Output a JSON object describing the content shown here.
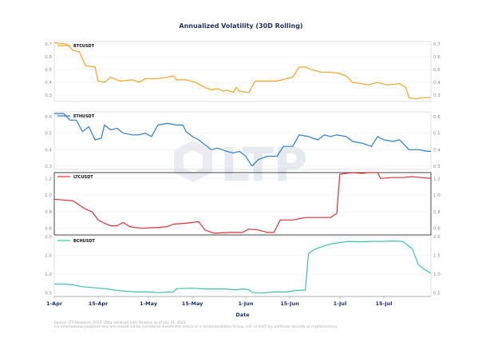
{
  "title": "Annualized Volatility (30D Rolling)",
  "xlabel": "Date",
  "watermark_text": "LTP",
  "footer": {
    "line1": "Source: LTP Research, 2023. Data retrieved from Binance as of July 31, 2023.",
    "line2": "For informational purposes only and should not be considered investment advice or a recommendation to buy, sell, or hold any particular security or cryptocurrency."
  },
  "chart_data": {
    "type": "line",
    "title": "Annualized Volatility (30D Rolling)",
    "xlabel": "Date",
    "x_range": [
      0,
      120
    ],
    "x_ticks": [
      {
        "label": "1-Apr",
        "day": 0
      },
      {
        "label": "15-Apr",
        "day": 14
      },
      {
        "label": "1-May",
        "day": 30
      },
      {
        "label": "15-May",
        "day": 44
      },
      {
        "label": "1-Jun",
        "day": 61
      },
      {
        "label": "15-Jun",
        "day": 75
      },
      {
        "label": "1-Jul",
        "day": 91
      },
      {
        "label": "15-Jul",
        "day": 105
      }
    ],
    "panels": [
      {
        "name": "BTCUSDT",
        "color": "#f2a322",
        "ylim": [
          0.25,
          0.72
        ],
        "yticks": [
          "0.3",
          "0.4",
          "0.5",
          "0.6",
          "0.7"
        ],
        "points": [
          [
            0,
            0.71
          ],
          [
            4,
            0.7
          ],
          [
            6,
            0.65
          ],
          [
            8,
            0.64
          ],
          [
            10,
            0.53
          ],
          [
            13,
            0.52
          ],
          [
            14,
            0.41
          ],
          [
            16,
            0.4
          ],
          [
            18,
            0.44
          ],
          [
            21,
            0.41
          ],
          [
            25,
            0.42
          ],
          [
            27,
            0.4
          ],
          [
            29,
            0.43
          ],
          [
            33,
            0.43
          ],
          [
            36,
            0.44
          ],
          [
            38,
            0.45
          ],
          [
            39,
            0.42
          ],
          [
            42,
            0.42
          ],
          [
            45,
            0.4
          ],
          [
            48,
            0.36
          ],
          [
            50,
            0.34
          ],
          [
            52,
            0.35
          ],
          [
            54,
            0.33
          ],
          [
            55,
            0.34
          ],
          [
            57,
            0.32
          ],
          [
            58,
            0.36
          ],
          [
            59,
            0.33
          ],
          [
            62,
            0.32
          ],
          [
            64,
            0.41
          ],
          [
            68,
            0.41
          ],
          [
            71,
            0.41
          ],
          [
            74,
            0.43
          ],
          [
            76,
            0.44
          ],
          [
            78,
            0.52
          ],
          [
            80,
            0.52
          ],
          [
            82,
            0.5
          ],
          [
            85,
            0.48
          ],
          [
            88,
            0.48
          ],
          [
            91,
            0.47
          ],
          [
            93,
            0.45
          ],
          [
            95,
            0.4
          ],
          [
            98,
            0.39
          ],
          [
            100,
            0.38
          ],
          [
            103,
            0.4
          ],
          [
            106,
            0.38
          ],
          [
            110,
            0.39
          ],
          [
            112,
            0.36
          ],
          [
            113,
            0.28
          ],
          [
            115,
            0.27
          ],
          [
            117,
            0.28
          ],
          [
            120,
            0.28
          ]
        ]
      },
      {
        "name": "ETHUSDT",
        "color": "#2c7cc6",
        "ylim": [
          0.28,
          0.63
        ],
        "yticks": [
          "0.3",
          "0.4",
          "0.5",
          "0.6"
        ],
        "points": [
          [
            0,
            0.62
          ],
          [
            3,
            0.62
          ],
          [
            5,
            0.58
          ],
          [
            7,
            0.58
          ],
          [
            9,
            0.51
          ],
          [
            11,
            0.54
          ],
          [
            13,
            0.46
          ],
          [
            15,
            0.47
          ],
          [
            16,
            0.55
          ],
          [
            18,
            0.52
          ],
          [
            20,
            0.53
          ],
          [
            22,
            0.5
          ],
          [
            25,
            0.49
          ],
          [
            27,
            0.49
          ],
          [
            29,
            0.5
          ],
          [
            31,
            0.48
          ],
          [
            33,
            0.55
          ],
          [
            36,
            0.56
          ],
          [
            39,
            0.55
          ],
          [
            41,
            0.55
          ],
          [
            42,
            0.51
          ],
          [
            44,
            0.48
          ],
          [
            46,
            0.46
          ],
          [
            48,
            0.43
          ],
          [
            50,
            0.4
          ],
          [
            52,
            0.41
          ],
          [
            55,
            0.39
          ],
          [
            57,
            0.38
          ],
          [
            59,
            0.39
          ],
          [
            61,
            0.36
          ],
          [
            63,
            0.3
          ],
          [
            65,
            0.34
          ],
          [
            68,
            0.36
          ],
          [
            71,
            0.36
          ],
          [
            73,
            0.42
          ],
          [
            76,
            0.42
          ],
          [
            78,
            0.49
          ],
          [
            81,
            0.48
          ],
          [
            84,
            0.46
          ],
          [
            86,
            0.49
          ],
          [
            88,
            0.48
          ],
          [
            90,
            0.49
          ],
          [
            93,
            0.48
          ],
          [
            95,
            0.45
          ],
          [
            98,
            0.44
          ],
          [
            101,
            0.42
          ],
          [
            103,
            0.48
          ],
          [
            105,
            0.46
          ],
          [
            108,
            0.45
          ],
          [
            110,
            0.46
          ],
          [
            113,
            0.4
          ],
          [
            116,
            0.4
          ],
          [
            119,
            0.39
          ],
          [
            120,
            0.39
          ]
        ]
      },
      {
        "name": "LTCUSDT",
        "color": "#dd2e3b",
        "ylim": [
          0.52,
          1.27
        ],
        "yticks": [
          "0.6",
          "0.8",
          "1.0",
          "1.2"
        ],
        "points": [
          [
            0,
            0.95
          ],
          [
            3,
            0.94
          ],
          [
            6,
            0.93
          ],
          [
            8,
            0.88
          ],
          [
            10,
            0.83
          ],
          [
            12,
            0.8
          ],
          [
            14,
            0.7
          ],
          [
            16,
            0.66
          ],
          [
            18,
            0.63
          ],
          [
            20,
            0.63
          ],
          [
            22,
            0.67
          ],
          [
            24,
            0.62
          ],
          [
            28,
            0.6
          ],
          [
            33,
            0.61
          ],
          [
            36,
            0.62
          ],
          [
            38,
            0.65
          ],
          [
            42,
            0.66
          ],
          [
            46,
            0.68
          ],
          [
            48,
            0.58
          ],
          [
            51,
            0.54
          ],
          [
            56,
            0.55
          ],
          [
            60,
            0.55
          ],
          [
            62,
            0.59
          ],
          [
            65,
            0.58
          ],
          [
            68,
            0.55
          ],
          [
            70,
            0.55
          ],
          [
            72,
            0.7
          ],
          [
            76,
            0.7
          ],
          [
            80,
            0.73
          ],
          [
            88,
            0.73
          ],
          [
            90,
            0.78
          ],
          [
            91,
            1.25
          ],
          [
            93,
            1.26
          ],
          [
            95,
            1.27
          ],
          [
            98,
            1.26
          ],
          [
            100,
            1.29
          ],
          [
            103,
            1.29
          ],
          [
            104,
            1.2
          ],
          [
            107,
            1.21
          ],
          [
            111,
            1.21
          ],
          [
            114,
            1.22
          ],
          [
            117,
            1.21
          ],
          [
            120,
            1.2
          ]
        ]
      },
      {
        "name": "BCHUSDT",
        "color": "#3dc5a0",
        "ylim": [
          0.4,
          2.0
        ],
        "yticks": [
          "0.5",
          "1.0",
          "1.5",
          "2.0"
        ],
        "points": [
          [
            0,
            0.73
          ],
          [
            3,
            0.73
          ],
          [
            6,
            0.71
          ],
          [
            9,
            0.66
          ],
          [
            13,
            0.63
          ],
          [
            17,
            0.6
          ],
          [
            20,
            0.56
          ],
          [
            24,
            0.53
          ],
          [
            27,
            0.52
          ],
          [
            30,
            0.52
          ],
          [
            33,
            0.5
          ],
          [
            35,
            0.51
          ],
          [
            38,
            0.52
          ],
          [
            39,
            0.61
          ],
          [
            44,
            0.62
          ],
          [
            48,
            0.6
          ],
          [
            54,
            0.6
          ],
          [
            58,
            0.58
          ],
          [
            60,
            0.6
          ],
          [
            62,
            0.58
          ],
          [
            63,
            0.51
          ],
          [
            66,
            0.49
          ],
          [
            70,
            0.52
          ],
          [
            74,
            0.52
          ],
          [
            77,
            0.56
          ],
          [
            80,
            0.57
          ],
          [
            81,
            1.55
          ],
          [
            83,
            1.66
          ],
          [
            86,
            1.75
          ],
          [
            88,
            1.8
          ],
          [
            91,
            1.84
          ],
          [
            94,
            1.87
          ],
          [
            97,
            1.86
          ],
          [
            101,
            1.87
          ],
          [
            104,
            1.87
          ],
          [
            108,
            1.88
          ],
          [
            111,
            1.87
          ],
          [
            114,
            1.68
          ],
          [
            116,
            1.25
          ],
          [
            118,
            1.12
          ],
          [
            120,
            1.02
          ]
        ]
      }
    ]
  }
}
